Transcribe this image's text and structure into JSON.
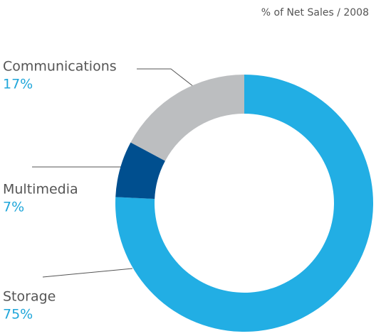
{
  "chart_data": {
    "type": "donut",
    "title": "% of Net Sales / 2008",
    "categories": [
      "Storage",
      "Multimedia",
      "Communications"
    ],
    "values": [
      75,
      7,
      17
    ],
    "value_labels": [
      "75%",
      "7%",
      "17%"
    ],
    "colors": [
      "#22aee4",
      "#004f8f",
      "#bcbec0"
    ]
  }
}
